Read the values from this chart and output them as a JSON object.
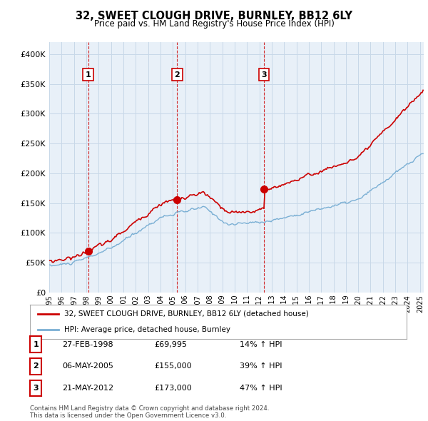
{
  "title": "32, SWEET CLOUGH DRIVE, BURNLEY, BB12 6LY",
  "subtitle": "Price paid vs. HM Land Registry's House Price Index (HPI)",
  "ylim": [
    0,
    420000
  ],
  "yticks": [
    0,
    50000,
    100000,
    150000,
    200000,
    250000,
    300000,
    350000,
    400000
  ],
  "xlim_start": 1995.0,
  "xlim_end": 2025.3,
  "red_color": "#cc0000",
  "blue_color": "#7aafd4",
  "chart_bg": "#e8f0f8",
  "purchase_dates": [
    1998.15,
    2005.35,
    2012.39
  ],
  "purchase_prices": [
    69995,
    155000,
    173000
  ],
  "purchase_labels": [
    "1",
    "2",
    "3"
  ],
  "vline_color": "#cc0000",
  "legend_entry1": "32, SWEET CLOUGH DRIVE, BURNLEY, BB12 6LY (detached house)",
  "legend_entry2": "HPI: Average price, detached house, Burnley",
  "table_data": [
    [
      "1",
      "27-FEB-1998",
      "£69,995",
      "14% ↑ HPI"
    ],
    [
      "2",
      "06-MAY-2005",
      "£155,000",
      "39% ↑ HPI"
    ],
    [
      "3",
      "21-MAY-2012",
      "£173,000",
      "47% ↑ HPI"
    ]
  ],
  "footnote": "Contains HM Land Registry data © Crown copyright and database right 2024.\nThis data is licensed under the Open Government Licence v3.0.",
  "background_color": "#ffffff",
  "grid_color": "#c8d8e8"
}
